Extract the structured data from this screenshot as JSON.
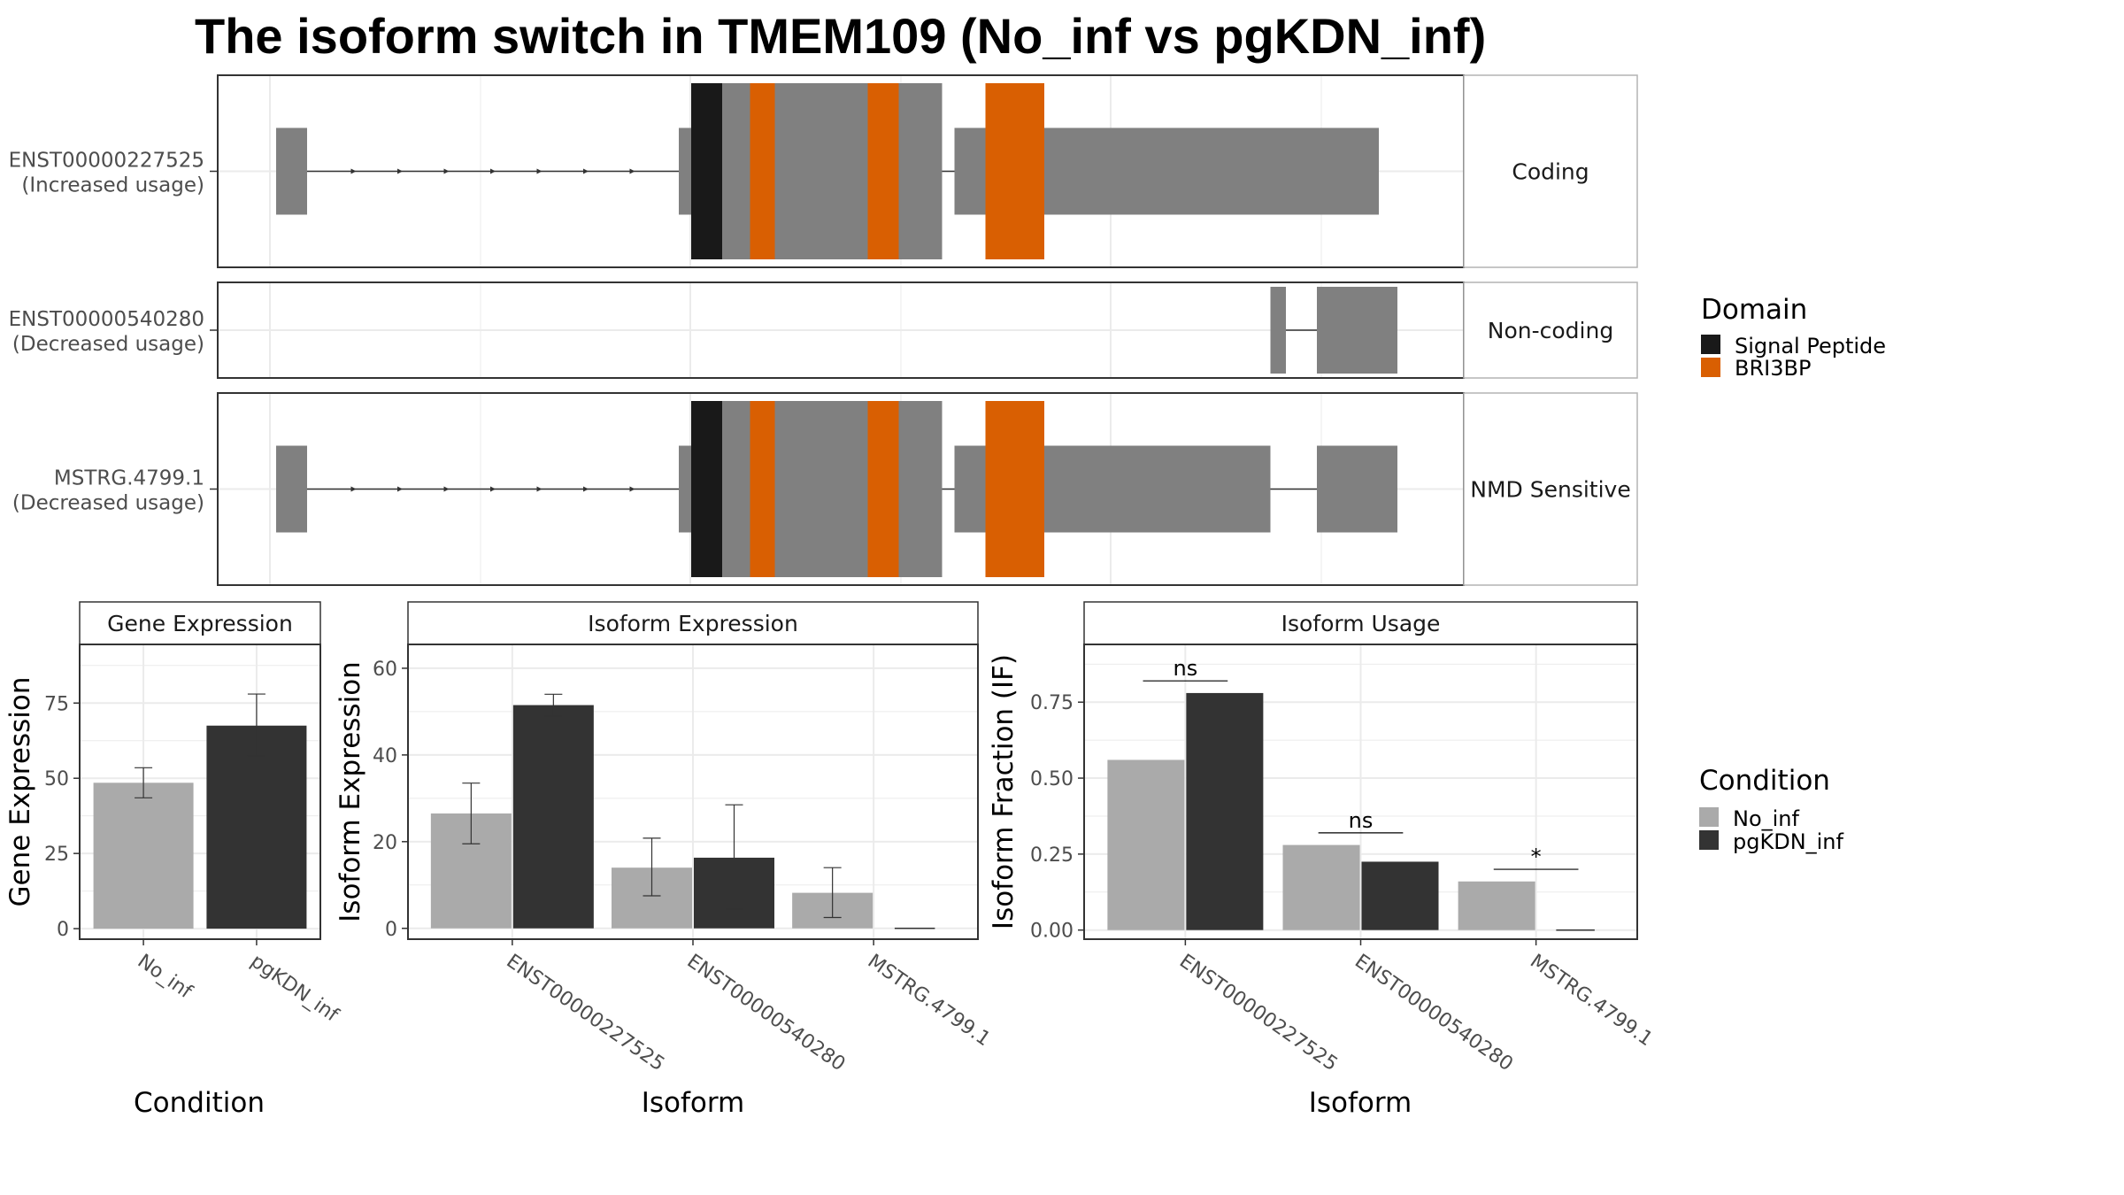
{
  "title": "The isoform switch in TMEM109 (No_inf vs pgKDN_inf)",
  "colors": {
    "exon": "#808080",
    "signal_peptide": "#191919",
    "bri3bp": "#D95F02",
    "no_inf": "#AAAAAA",
    "pgkdn_inf": "#333333",
    "grid": "#EBEBEB",
    "panel_border": "#333333",
    "strip_border": "#B3B3B3"
  },
  "transcripts": [
    {
      "id": "ENST00000227525",
      "usage": "(Increased usage)",
      "type": "Coding",
      "exons": [
        [
          10,
          60,
          false
        ],
        [
          660,
          680,
          false
        ],
        [
          680,
          1085,
          true
        ],
        [
          1105,
          1140,
          false
        ],
        [
          1140,
          1790,
          false
        ]
      ],
      "domains": [
        {
          "domain": "Signal Peptide",
          "start": 680,
          "end": 730
        },
        {
          "domain": "BRI3BP",
          "start": 775,
          "end": 815
        },
        {
          "domain": "BRI3BP",
          "start": 965,
          "end": 1015
        },
        {
          "domain": "BRI3BP",
          "start": 1155,
          "end": 1250
        }
      ]
    },
    {
      "id": "ENST00000540280",
      "usage": "(Decreased usage)",
      "type": "Non-coding",
      "exons": [
        [
          1615,
          1640,
          false
        ],
        [
          1690,
          1820,
          false
        ]
      ],
      "domains": []
    },
    {
      "id": "MSTRG.4799.1",
      "usage": "(Decreased usage)",
      "type": "NMD Sensitive",
      "exons": [
        [
          10,
          60,
          false
        ],
        [
          660,
          680,
          false
        ],
        [
          680,
          1085,
          true
        ],
        [
          1105,
          1140,
          false
        ],
        [
          1140,
          1615,
          false
        ],
        [
          1690,
          1820,
          false
        ]
      ],
      "domains": [
        {
          "domain": "Signal Peptide",
          "start": 680,
          "end": 730
        },
        {
          "domain": "BRI3BP",
          "start": 775,
          "end": 815
        },
        {
          "domain": "BRI3BP",
          "start": 965,
          "end": 1015
        },
        {
          "domain": "BRI3BP",
          "start": 1155,
          "end": 1250
        }
      ]
    }
  ],
  "domain_legend": {
    "title": "Domain",
    "items": [
      {
        "label": "Signal Peptide",
        "color": "#191919"
      },
      {
        "label": "BRI3BP",
        "color": "#D95F02"
      }
    ]
  },
  "condition_legend": {
    "title": "Condition",
    "items": [
      {
        "label": "No_inf",
        "color": "#AAAAAA"
      },
      {
        "label": "pgKDN_inf",
        "color": "#333333"
      }
    ]
  },
  "chart_data": [
    {
      "type": "bar",
      "title": "Gene Expression",
      "xlabel": "Condition",
      "ylabel": "Gene Expression",
      "categories": [
        "No_inf",
        "pgKDN_inf"
      ],
      "series": [
        {
          "name": "No_inf",
          "values": [
            48.5,
            null
          ]
        },
        {
          "name": "pgKDN_inf",
          "values": [
            null,
            67.5
          ]
        }
      ],
      "error": [
        [
          43.5,
          53.5
        ],
        [
          57.5,
          78.0
        ]
      ],
      "yticks": [
        0,
        25,
        50,
        75
      ],
      "ylim": [
        -3.5,
        94.5
      ],
      "grid": true
    },
    {
      "type": "bar",
      "title": "Isoform Expression",
      "xlabel": "Isoform",
      "ylabel": "Isoform Expression",
      "categories": [
        "ENST00000227525",
        "ENST00000540280",
        "MSTRG.4799.1"
      ],
      "series": [
        {
          "name": "No_inf",
          "values": [
            26.5,
            14.0,
            8.2
          ]
        },
        {
          "name": "pgKDN_inf",
          "values": [
            51.5,
            16.3,
            0.0
          ]
        }
      ],
      "error_no_inf": [
        [
          19.5,
          33.5
        ],
        [
          7.5,
          20.8
        ],
        [
          2.5,
          14.0
        ]
      ],
      "error_pgkdn_inf": [
        [
          49.0,
          54.0
        ],
        [
          4.5,
          28.5
        ],
        [
          0.0,
          0.0
        ]
      ],
      "yticks": [
        0,
        20,
        40,
        60
      ],
      "ylim": [
        -2.5,
        65.5
      ],
      "grid": true
    },
    {
      "type": "bar",
      "title": "Isoform Usage",
      "xlabel": "Isoform",
      "ylabel": "Isoform Fraction (IF)",
      "categories": [
        "ENST00000227525",
        "ENST00000540280",
        "MSTRG.4799.1"
      ],
      "series": [
        {
          "name": "No_inf",
          "values": [
            0.56,
            0.28,
            0.16
          ]
        },
        {
          "name": "pgKDN_inf",
          "values": [
            0.78,
            0.225,
            0.0
          ]
        }
      ],
      "significance": [
        "ns",
        "ns",
        "*"
      ],
      "significance_y": [
        0.82,
        0.32,
        0.2
      ],
      "yticks": [
        0.0,
        0.25,
        0.5,
        0.75
      ],
      "ytick_labels": [
        "0.00",
        "0.25",
        "0.50",
        "0.75"
      ],
      "ylim": [
        -0.03,
        0.94
      ],
      "grid": true
    }
  ]
}
